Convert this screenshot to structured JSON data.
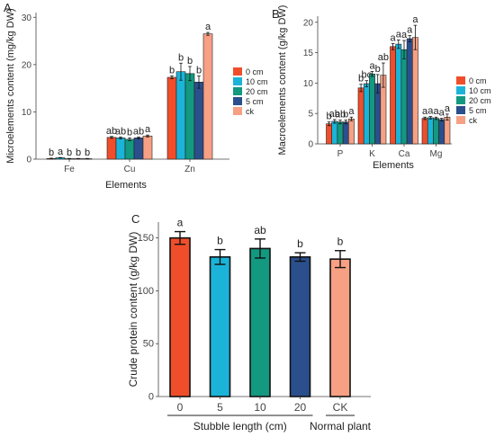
{
  "chart_data": [
    {
      "panel": "A",
      "type": "bar",
      "categories": [
        "Fe",
        "Cu",
        "Zn"
      ],
      "xlabel": "Elements",
      "ylabel": "Microelements content (mg/kg DW)",
      "ylim": [
        0,
        31
      ],
      "yticks": [
        0,
        10,
        20,
        30
      ],
      "grid": false,
      "legend_position": "right",
      "series": [
        {
          "name": "0 cm",
          "color": "#f04e2b",
          "values": [
            0.15,
            4.6,
            17.3
          ],
          "errors": [
            0.05,
            0.2,
            0.3
          ],
          "letters": [
            "b",
            "ab",
            "b"
          ]
        },
        {
          "name": "10 cm",
          "color": "#1bb4d8",
          "values": [
            0.3,
            4.5,
            18.5
          ],
          "errors": [
            0.05,
            0.2,
            1.8
          ],
          "letters": [
            "a",
            "ab",
            "b"
          ]
        },
        {
          "name": "20 cm",
          "color": "#129980",
          "values": [
            0.1,
            4.2,
            18.1
          ],
          "errors": [
            0.05,
            0.3,
            1.5
          ],
          "letters": [
            "b",
            "b",
            "b"
          ]
        },
        {
          "name": "5 cm",
          "color": "#2b4f8c",
          "values": [
            0.1,
            4.5,
            16.3
          ],
          "errors": [
            0.05,
            0.2,
            1.3
          ],
          "letters": [
            "b",
            "ab",
            "b"
          ]
        },
        {
          "name": "ck",
          "color": "#f7a084",
          "values": [
            0.1,
            4.9,
            26.5
          ],
          "errors": [
            0.05,
            0.2,
            0.3
          ],
          "letters": [
            "b",
            "a",
            "a"
          ]
        }
      ]
    },
    {
      "panel": "B",
      "type": "bar",
      "categories": [
        "P",
        "K",
        "Ca",
        "Mg"
      ],
      "xlabel": "Elements",
      "ylabel": "Macroelements content (g/kg DW)",
      "ylim": [
        0,
        21
      ],
      "yticks": [
        0,
        5,
        10,
        15,
        20
      ],
      "grid": false,
      "legend_position": "right",
      "series": [
        {
          "name": "0 cm",
          "color": "#f04e2b",
          "values": [
            3.3,
            9.2,
            16.0,
            4.2
          ],
          "errors": [
            0.3,
            0.6,
            0.5,
            0.2
          ],
          "letters": [
            "b",
            "b",
            "a",
            "a"
          ]
        },
        {
          "name": "10 cm",
          "color": "#1bb4d8",
          "values": [
            3.7,
            9.9,
            16.4,
            4.3
          ],
          "errors": [
            0.3,
            0.5,
            0.7,
            0.2
          ],
          "letters": [
            "ab",
            "bc",
            "a",
            "a"
          ]
        },
        {
          "name": "20 cm",
          "color": "#129980",
          "values": [
            3.6,
            11.5,
            15.5,
            4.2
          ],
          "errors": [
            0.3,
            0.4,
            1.5,
            0.2
          ],
          "letters": [
            "ab",
            "a",
            "a",
            "a"
          ]
        },
        {
          "name": "5 cm",
          "color": "#2b4f8c",
          "values": [
            3.6,
            9.9,
            17.3,
            4.0
          ],
          "errors": [
            0.3,
            1.5,
            0.5,
            0.2
          ],
          "letters": [
            "b",
            "b",
            "a",
            "a"
          ]
        },
        {
          "name": "ck",
          "color": "#f7a084",
          "values": [
            4.1,
            11.3,
            17.5,
            4.4
          ],
          "errors": [
            0.3,
            2.0,
            2.0,
            0.5
          ],
          "letters": [
            "a",
            "ab",
            "a",
            "a"
          ]
        }
      ]
    },
    {
      "panel": "C",
      "type": "bar",
      "categories": [
        "0",
        "5",
        "10",
        "20",
        "CK"
      ],
      "xlabel": "Stubble length (cm)",
      "xlabel_extra": "Normal plant",
      "ylabel": "Crude protein content (g/kg DW)",
      "ylim": [
        0,
        165
      ],
      "yticks": [
        0,
        50,
        100,
        150
      ],
      "grid": false,
      "values": [
        150,
        132,
        140,
        132,
        130
      ],
      "errors": [
        6,
        7,
        9,
        4,
        8
      ],
      "letters": [
        "a",
        "b",
        "ab",
        "b",
        "b"
      ],
      "colors": [
        "#f04e2b",
        "#1bb4d8",
        "#129980",
        "#2b4f8c",
        "#f7a084"
      ]
    }
  ]
}
